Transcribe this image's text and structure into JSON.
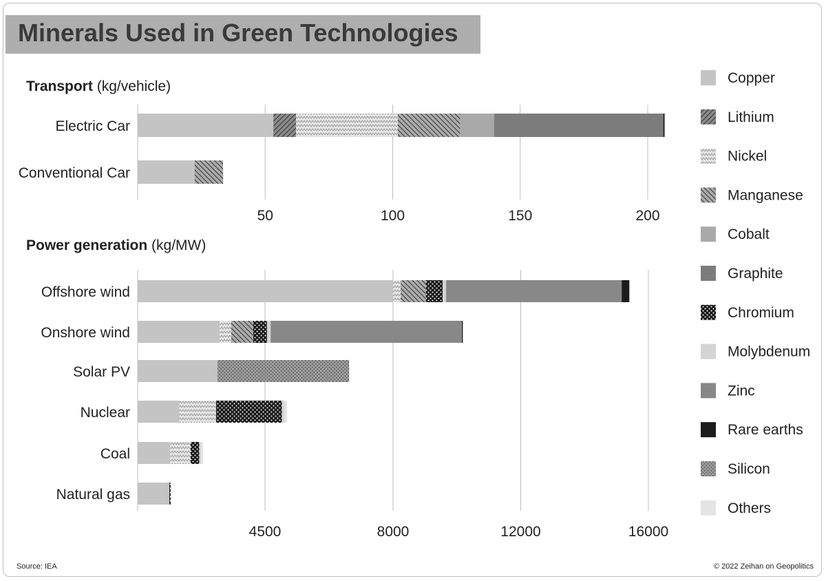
{
  "title": "Minerals Used in Green Technologies",
  "source": "Source: IEA",
  "copyright": "© 2022 Zeihan on Geopolitics",
  "chart_data": [
    {
      "type": "bar",
      "orientation": "horizontal",
      "stacked": true,
      "section_title": "Transport",
      "section_unit": "(kg/vehicle)",
      "categories": [
        "Electric Car",
        "Conventional Car"
      ],
      "x_ticks": [
        50,
        100,
        150,
        200
      ],
      "xlim": [
        0,
        200
      ],
      "grid": true,
      "series": [
        {
          "name": "Copper",
          "values": [
            53.2,
            22.3
          ]
        },
        {
          "name": "Lithium",
          "values": [
            8.9,
            0
          ]
        },
        {
          "name": "Nickel",
          "values": [
            39.9,
            0
          ]
        },
        {
          "name": "Manganese",
          "values": [
            24.5,
            11.2
          ]
        },
        {
          "name": "Cobalt",
          "values": [
            13.3,
            0
          ]
        },
        {
          "name": "Graphite",
          "values": [
            66.3,
            0
          ]
        },
        {
          "name": "Rare earths",
          "values": [
            0.5,
            0
          ]
        },
        {
          "name": "Others",
          "values": [
            0.3,
            0
          ]
        }
      ]
    },
    {
      "type": "bar",
      "orientation": "horizontal",
      "stacked": true,
      "section_title": "Power generation",
      "section_unit": "(kg/MW)",
      "categories": [
        "Offshore wind",
        "Onshore wind",
        "Solar PV",
        "Nuclear",
        "Coal",
        "Natural gas"
      ],
      "x_ticks": [
        4500,
        8000,
        12000,
        16000
      ],
      "xlim": [
        0,
        16000
      ],
      "grid": true,
      "series": [
        {
          "name": "Copper",
          "values": [
            8000,
            2900,
            2822,
            1473,
            1150,
            1100
          ]
        },
        {
          "name": "Nickel",
          "values": [
            240,
            404,
            0,
            1297,
            721,
            16
          ]
        },
        {
          "name": "Manganese",
          "values": [
            790,
            780,
            0,
            0,
            0,
            0
          ]
        },
        {
          "name": "Chromium",
          "values": [
            525,
            470,
            0,
            2190,
            305,
            48
          ]
        },
        {
          "name": "Molybdenum",
          "values": [
            109,
            99,
            0,
            70,
            66,
            0
          ]
        },
        {
          "name": "Zinc",
          "values": [
            5500,
            5500,
            0,
            0,
            0,
            0
          ]
        },
        {
          "name": "Rare earths",
          "values": [
            239,
            14,
            0,
            0,
            0,
            0
          ]
        },
        {
          "name": "Silicon",
          "values": [
            0,
            0,
            3978,
            0,
            0,
            0
          ]
        },
        {
          "name": "Others",
          "values": [
            0,
            0,
            0,
            70,
            66,
            0
          ]
        }
      ]
    }
  ],
  "legend": [
    {
      "name": "Copper",
      "icon": "copper-swatch"
    },
    {
      "name": "Lithium",
      "icon": "lithium-swatch"
    },
    {
      "name": "Nickel",
      "icon": "nickel-swatch"
    },
    {
      "name": "Manganese",
      "icon": "manganese-swatch"
    },
    {
      "name": "Cobalt",
      "icon": "cobalt-swatch"
    },
    {
      "name": "Graphite",
      "icon": "graphite-swatch"
    },
    {
      "name": "Chromium",
      "icon": "chromium-swatch"
    },
    {
      "name": "Molybdenum",
      "icon": "molybdenum-swatch"
    },
    {
      "name": "Zinc",
      "icon": "zinc-swatch"
    },
    {
      "name": "Rare earths",
      "icon": "rare-earths-swatch"
    },
    {
      "name": "Silicon",
      "icon": "silicon-swatch"
    },
    {
      "name": "Others",
      "icon": "others-swatch"
    }
  ]
}
